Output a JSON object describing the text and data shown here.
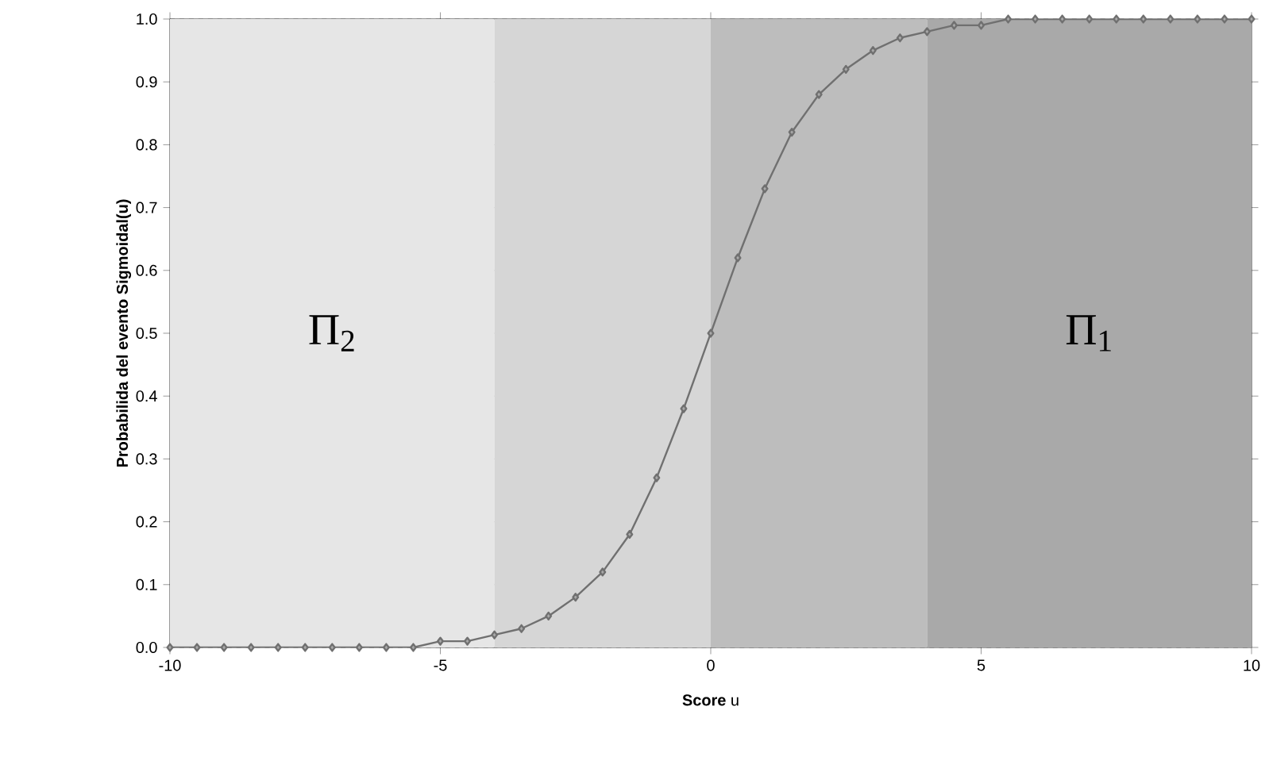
{
  "chart_data": {
    "type": "line",
    "xlabel": "**Score** u",
    "ylabel": "Probabilida del evento Sigmoidal(u)",
    "x": [
      -10,
      -9.5,
      -9,
      -8.5,
      -8,
      -7.5,
      -7,
      -6.5,
      -6,
      -5.5,
      -5,
      -4.5,
      -4,
      -3.5,
      -3,
      -2.5,
      -2,
      -1.5,
      -1,
      -0.5,
      0,
      0.5,
      1,
      1.5,
      2,
      2.5,
      3,
      3.5,
      4,
      4.5,
      5,
      5.5,
      6,
      6.5,
      7,
      7.5,
      8,
      8.5,
      9,
      9.5,
      10
    ],
    "series": [
      {
        "color": "#707070",
        "values": [
          0,
          0,
          0,
          0,
          0,
          0,
          0,
          0,
          0,
          0,
          0.01,
          0.01,
          0.02,
          0.03,
          0.05,
          0.08,
          0.12,
          0.18,
          0.27,
          0.38,
          0.5,
          0.62,
          0.73,
          0.82,
          0.88,
          0.92,
          0.95,
          0.97,
          0.98,
          0.99,
          0.99,
          1,
          1,
          1,
          1,
          1,
          1,
          1,
          1,
          1,
          1
        ]
      }
    ],
    "xlim": [
      -10,
      10
    ],
    "ylim": [
      0,
      1
    ],
    "xticks": [
      -10,
      -5,
      0,
      5,
      10
    ],
    "yticks": [
      {
        "value": 0,
        "label": "0.0"
      },
      {
        "value": 0.1,
        "label": "0.1"
      },
      {
        "value": 0.2,
        "label": "0.2"
      },
      {
        "value": 0.3,
        "label": "0.3"
      },
      {
        "value": 0.4,
        "label": "0.4"
      },
      {
        "value": 0.5,
        "label": "0.5"
      },
      {
        "value": 0.6,
        "label": "0.6"
      },
      {
        "value": 0.7,
        "label": "0.7"
      },
      {
        "value": 0.8,
        "label": "0.8"
      },
      {
        "value": 0.9,
        "label": "0.9"
      },
      {
        "value": 1,
        "label": "1.0"
      }
    ],
    "bands": [
      {
        "axis": "x",
        "from": -10,
        "to": -4,
        "color": "#e6e6e6",
        "label": "Π$_{2}$"
      },
      {
        "axis": "x",
        "from": -4,
        "to": 0,
        "color": "#d6d6d6"
      },
      {
        "axis": "x",
        "from": 0,
        "to": 4,
        "color": "#bdbdbd"
      },
      {
        "axis": "x",
        "from": 4,
        "to": 10,
        "color": "#a9a9a9",
        "label": "Π$_{1}$"
      }
    ],
    "grid": "y",
    "marker": "diamond",
    "line_style": "solid"
  }
}
